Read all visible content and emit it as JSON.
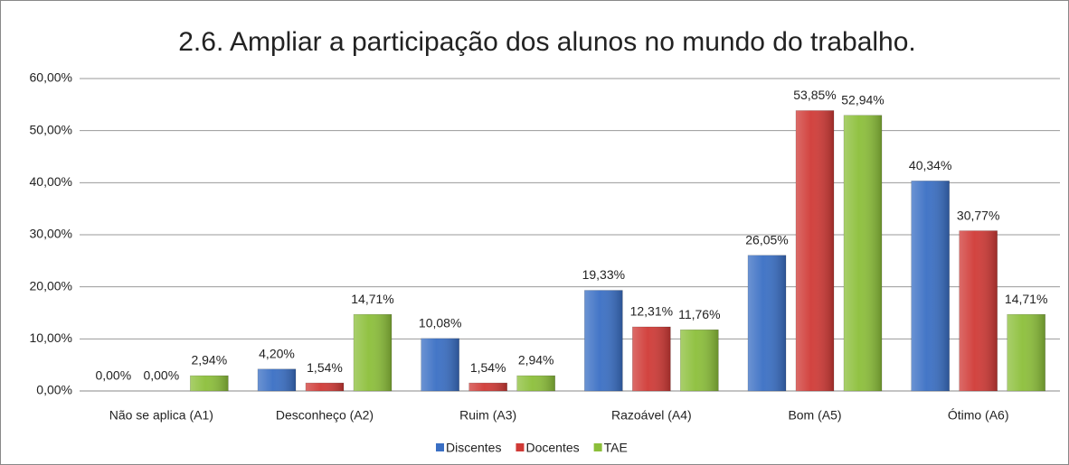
{
  "chart_data": {
    "type": "bar",
    "title": "2.6. Ampliar a participação dos alunos no mundo do trabalho.",
    "categories": [
      "Não se aplica (A1)",
      "Desconheço (A2)",
      "Ruim (A3)",
      "Razoável (A4)",
      "Bom (A5)",
      "Ótimo (A6)"
    ],
    "series": [
      {
        "name": "Discentes",
        "color": "#3a6fc4",
        "values": [
          0,
          4.2,
          10.08,
          19.33,
          26.05,
          40.34
        ],
        "value_labels": [
          "0,00%",
          "4,20%",
          "10,08%",
          "19,33%",
          "26,05%",
          "40,34%"
        ]
      },
      {
        "name": "Docentes",
        "color": "#d03a36",
        "values": [
          0,
          1.54,
          1.54,
          12.31,
          53.85,
          30.77
        ],
        "value_labels": [
          "0,00%",
          "1,54%",
          "1,54%",
          "12,31%",
          "53,85%",
          "30,77%"
        ]
      },
      {
        "name": "TAE",
        "color": "#8cbf3a",
        "values": [
          2.94,
          14.71,
          2.94,
          11.76,
          52.94,
          14.71
        ],
        "value_labels": [
          "2,94%",
          "14,71%",
          "2,94%",
          "11,76%",
          "52,94%",
          "14,71%"
        ]
      }
    ],
    "ylim": [
      0,
      60
    ],
    "yticks": [
      {
        "value": 0,
        "label": "0,00%"
      },
      {
        "value": 10,
        "label": "10,00%"
      },
      {
        "value": 20,
        "label": "20,00%"
      },
      {
        "value": 30,
        "label": "30,00%"
      },
      {
        "value": 40,
        "label": "40,00%"
      },
      {
        "value": 50,
        "label": "50,00%"
      },
      {
        "value": 60,
        "label": "60,00%"
      }
    ],
    "grid": true,
    "legend": "bottom"
  }
}
